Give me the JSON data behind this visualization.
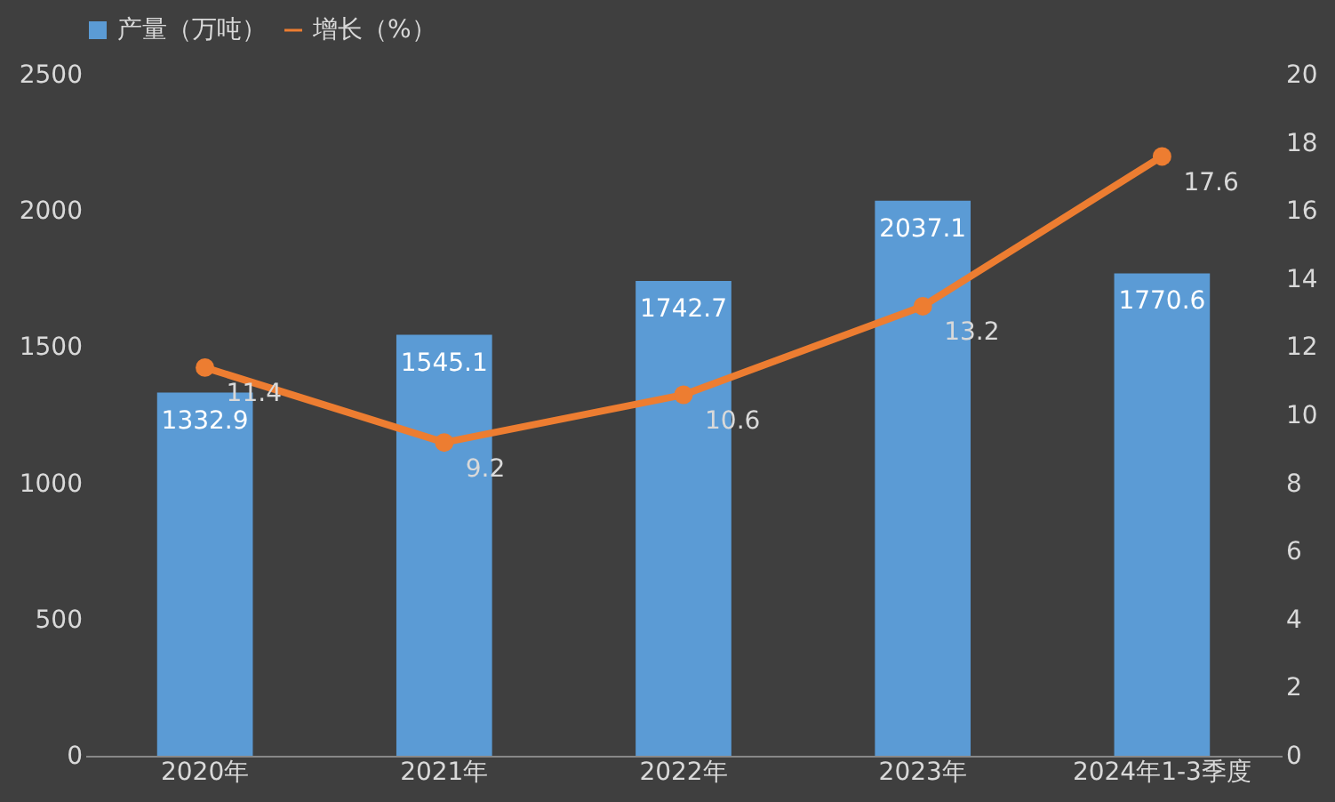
{
  "chart_data": {
    "type": "bar",
    "categories": [
      "2020年",
      "2021年",
      "2022年",
      "2023年",
      "2024年1-3季度"
    ],
    "series": [
      {
        "name": "产量（万吨）",
        "type": "bar",
        "color": "#5b9bd5",
        "values": [
          1332.9,
          1545.1,
          1742.7,
          2037.1,
          1770.6
        ]
      },
      {
        "name": "增长（%）",
        "type": "line",
        "axis": "y2",
        "color": "#ed7d31",
        "values": [
          11.4,
          9.2,
          10.6,
          13.2,
          17.6
        ]
      }
    ],
    "ylim": [
      0,
      2500
    ],
    "yticks": [
      0,
      500,
      1000,
      1500,
      2000,
      2500
    ],
    "y2lim": [
      0,
      20
    ],
    "y2ticks": [
      0,
      2,
      4,
      6,
      8,
      10,
      12,
      14,
      16,
      18,
      20
    ],
    "data_labels": true,
    "legend": "top",
    "grid": false,
    "marker": "circle",
    "line_style": "solid"
  }
}
